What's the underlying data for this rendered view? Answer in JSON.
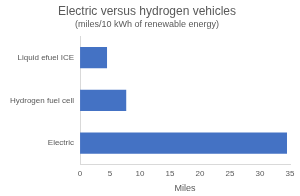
{
  "chart_data": {
    "type": "bar",
    "orientation": "horizontal",
    "title": "Electric versus hydrogen vehicles",
    "subtitle": "(miles/10 kWh of renewable energy)",
    "categories": [
      "Liquid efuel ICE",
      "Hydrogen fuel cell",
      "Electric"
    ],
    "values": [
      4.5,
      7.7,
      34.5
    ],
    "color": "#4472c4",
    "x_label": "Miles",
    "xlim": [
      0,
      35
    ],
    "xticks": [
      0,
      5,
      10,
      15,
      20,
      25,
      30,
      35
    ],
    "grid": false
  }
}
